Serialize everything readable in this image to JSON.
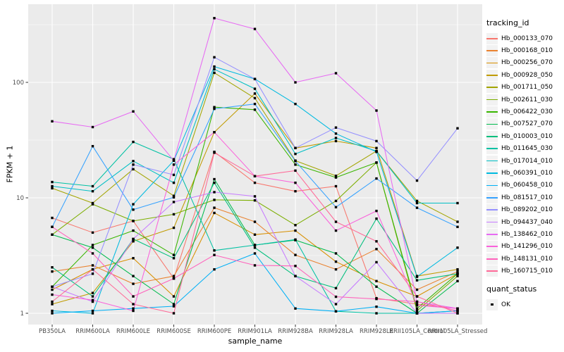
{
  "chart_data": {
    "type": "line",
    "title": "",
    "xlabel": "sample_name",
    "ylabel": "FPKM + 1",
    "y_scale": "log10",
    "ylim": [
      1,
      475
    ],
    "y_ticks": [
      1,
      10,
      100
    ],
    "y_tick_labels": [
      "1",
      "10",
      "100"
    ],
    "y_minor_ticks": [
      3.162,
      31.62,
      316.2
    ],
    "grid": true,
    "legend_position": "right",
    "legend_title": "tracking_id",
    "quant_legend": {
      "title": "quant_status",
      "items": [
        "OK"
      ]
    },
    "point_color": "#000000",
    "panel_color": "#EBEBEB",
    "gridline_color": "#FFFFFF",
    "tick_text_color": "#4D4D4D",
    "legend_key_color": "#F2F2F2",
    "x_categories": [
      "PB350LA",
      "RRIM600LA",
      "RRIM600LE",
      "RRIM600SE",
      "RRIM600PE",
      "RRIM901LA",
      "RRIM928BA",
      "RRIM928LA",
      "RRIM928LE",
      "RRII105LA_Control",
      "RRII105LA_Stressed"
    ],
    "series": [
      {
        "name": "Hb_000133_070",
        "color": "#F8766D",
        "values": [
          6.7,
          5.0,
          6.3,
          2.0,
          25,
          13.5,
          11.4,
          12.6,
          1.35,
          1.2,
          1.1
        ]
      },
      {
        "name": "Hb_000168_010",
        "color": "#EA8331",
        "values": [
          2.3,
          2.6,
          1.8,
          2.1,
          8.2,
          6.2,
          3.2,
          2.4,
          3.6,
          1.6,
          2.3
        ]
      },
      {
        "name": "Hb_000256_070",
        "color": "#D89000",
        "values": [
          1.6,
          2.4,
          3.0,
          1.4,
          7.4,
          4.8,
          5.2,
          2.8,
          1.9,
          1.4,
          2.2
        ]
      },
      {
        "name": "Hb_000928_050",
        "color": "#C09B00",
        "values": [
          1.2,
          1.5,
          4.2,
          5.5,
          37,
          80,
          27,
          31,
          27,
          2.1,
          2.4
        ]
      },
      {
        "name": "Hb_001711_050",
        "color": "#A3A500",
        "values": [
          12.1,
          9.0,
          17.7,
          10.4,
          121,
          73,
          21,
          15.5,
          25.4,
          9.4,
          6.2
        ]
      },
      {
        "name": "Hb_002611_030",
        "color": "#7CAE00",
        "values": [
          4.8,
          8.8,
          6.3,
          7.2,
          9.6,
          9.5,
          5.8,
          9.4,
          20.2,
          1.05,
          2.1
        ]
      },
      {
        "name": "Hb_006422_030",
        "color": "#39B600",
        "values": [
          1.7,
          3.9,
          5.2,
          3.2,
          61,
          58,
          19.4,
          15.0,
          20.2,
          1.1,
          2.2
        ]
      },
      {
        "name": "Hb_007527_070",
        "color": "#00BB4E",
        "values": [
          4.8,
          3.7,
          2.1,
          1.2,
          14.5,
          3.9,
          4.3,
          3.3,
          1.7,
          1.0,
          1.9
        ]
      },
      {
        "name": "Hb_010003_010",
        "color": "#00BF7D",
        "values": [
          2.5,
          1.4,
          4.4,
          3.0,
          13.5,
          3.7,
          2.1,
          1.65,
          6.6,
          1.93,
          2.2
        ]
      },
      {
        "name": "Hb_011645_030",
        "color": "#00C1A3",
        "values": [
          13.7,
          12.6,
          30.5,
          21.6,
          3.5,
          3.9,
          4.35,
          1.04,
          1.0,
          1.0,
          1.05
        ]
      },
      {
        "name": "Hb_017014_010",
        "color": "#00BFC4",
        "values": [
          12.6,
          11.4,
          20.8,
          13.5,
          130,
          88,
          24,
          33,
          25.4,
          9.0,
          9.0
        ]
      },
      {
        "name": "Hb_060391_010",
        "color": "#00BAE0",
        "values": [
          1.05,
          1.0,
          8.8,
          21.0,
          137,
          107,
          65,
          36,
          25,
          2.07,
          3.7
        ]
      },
      {
        "name": "Hb_060458_010",
        "color": "#00B0F6",
        "values": [
          1.0,
          1.05,
          1.1,
          1.15,
          2.4,
          3.3,
          1.1,
          1.04,
          1.14,
          1.0,
          1.05
        ]
      },
      {
        "name": "Hb_081517_010",
        "color": "#35A2FF",
        "values": [
          5.6,
          28,
          7.9,
          10.1,
          59,
          65,
          20.8,
          8.3,
          14.7,
          8.2,
          5.6
        ]
      },
      {
        "name": "Hb_089202_010",
        "color": "#9590FF",
        "values": [
          1.7,
          2.2,
          19.4,
          15.8,
          165,
          107,
          27,
          40.6,
          31,
          14.1,
          40
        ]
      },
      {
        "name": "Hb_094437_040",
        "color": "#C77CFF",
        "values": [
          1.7,
          1.26,
          4.4,
          9.2,
          11.2,
          10.3,
          2.1,
          1.2,
          2.77,
          1.0,
          1.0
        ]
      },
      {
        "name": "Hb_138462_010",
        "color": "#E76BF3",
        "values": [
          46,
          41,
          56,
          21,
          360,
          290,
          100,
          120,
          57,
          1.26,
          1.1
        ]
      },
      {
        "name": "Hb_141296_010",
        "color": "#FA62DB",
        "values": [
          1.45,
          1.3,
          1.05,
          19.4,
          37,
          15.4,
          13.5,
          5.2,
          7.7,
          1.17,
          1.1
        ]
      },
      {
        "name": "Hb_148131_010",
        "color": "#FF62BC",
        "values": [
          5.6,
          3.3,
          1.4,
          2.0,
          3.2,
          2.6,
          2.57,
          1.39,
          1.33,
          1.26,
          1.05
        ]
      },
      {
        "name": "Hb_160715_010",
        "color": "#FF6A98",
        "values": [
          1.26,
          2.4,
          1.2,
          1.0,
          24.6,
          15.4,
          17.2,
          6.2,
          4.2,
          1.4,
          1.0
        ]
      }
    ]
  }
}
